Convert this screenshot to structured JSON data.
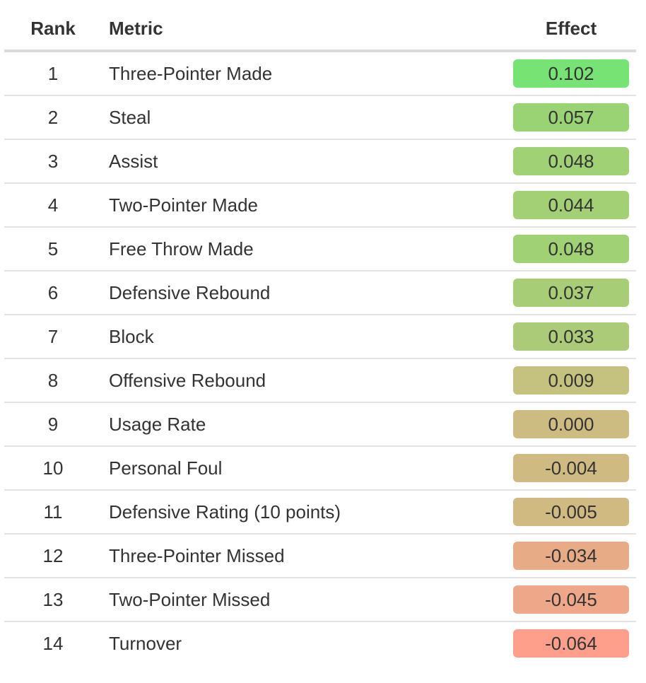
{
  "table": {
    "headers": {
      "rank": "Rank",
      "metric": "Metric",
      "effect": "Effect"
    },
    "rows": [
      {
        "rank": "1",
        "metric": "Three-Pointer Made",
        "effect": "0.102",
        "color": "#77e374"
      },
      {
        "rank": "2",
        "metric": "Steal",
        "effect": "0.057",
        "color": "#9ad374"
      },
      {
        "rank": "3",
        "metric": "Assist",
        "effect": "0.048",
        "color": "#a0d174"
      },
      {
        "rank": "4",
        "metric": "Two-Pointer Made",
        "effect": "0.044",
        "color": "#a3d075"
      },
      {
        "rank": "5",
        "metric": "Free Throw Made",
        "effect": "0.048",
        "color": "#a0d174"
      },
      {
        "rank": "6",
        "metric": "Defensive Rebound",
        "effect": "0.037",
        "color": "#a8cd77"
      },
      {
        "rank": "7",
        "metric": "Block",
        "effect": "0.033",
        "color": "#abcb78"
      },
      {
        "rank": "8",
        "metric": "Offensive Rebound",
        "effect": "0.009",
        "color": "#c5c17e"
      },
      {
        "rank": "9",
        "metric": "Usage Rate",
        "effect": "0.000",
        "color": "#cdbc81"
      },
      {
        "rank": "10",
        "metric": "Personal Foul",
        "effect": "-0.004",
        "color": "#cfbb81"
      },
      {
        "rank": "11",
        "metric": "Defensive Rating (10 points)",
        "effect": "-0.005",
        "color": "#d0ba81"
      },
      {
        "rank": "12",
        "metric": "Three-Pointer Missed",
        "effect": "-0.034",
        "color": "#e7ab86"
      },
      {
        "rank": "13",
        "metric": "Two-Pointer Missed",
        "effect": "-0.045",
        "color": "#eea788"
      },
      {
        "rank": "14",
        "metric": "Turnover",
        "effect": "-0.064",
        "color": "#fe9f8b"
      }
    ]
  },
  "chart_data": {
    "type": "table",
    "columns": [
      "Rank",
      "Metric",
      "Effect"
    ],
    "rows": [
      [
        1,
        "Three-Pointer Made",
        0.102
      ],
      [
        2,
        "Steal",
        0.057
      ],
      [
        3,
        "Assist",
        0.048
      ],
      [
        4,
        "Two-Pointer Made",
        0.044
      ],
      [
        5,
        "Free Throw Made",
        0.048
      ],
      [
        6,
        "Defensive Rebound",
        0.037
      ],
      [
        7,
        "Block",
        0.033
      ],
      [
        8,
        "Offensive Rebound",
        0.009
      ],
      [
        9,
        "Usage Rate",
        0.0
      ],
      [
        10,
        "Personal Foul",
        -0.004
      ],
      [
        11,
        "Defensive Rating (10 points)",
        -0.005
      ],
      [
        12,
        "Three-Pointer Missed",
        -0.034
      ],
      [
        13,
        "Two-Pointer Missed",
        -0.045
      ],
      [
        14,
        "Turnover",
        -0.064
      ]
    ],
    "color_scale": {
      "positive": "#77e374",
      "neutral": "#cdbc81",
      "negative": "#fe9f8b"
    }
  }
}
